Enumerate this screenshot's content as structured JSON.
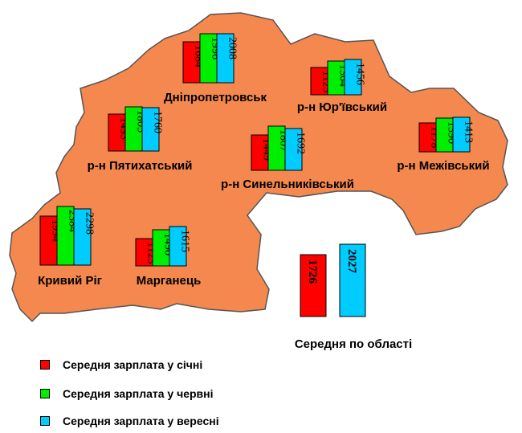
{
  "colors": {
    "region_fill": "#f4884e",
    "outline": "#555555",
    "january": "#ff0000",
    "june": "#00ee00",
    "september": "#00ccff"
  },
  "legend": [
    {
      "label": "Середня зарплата у січні",
      "color": "#ff0000"
    },
    {
      "label": "Середня зарплата у червні",
      "color": "#00ee00"
    },
    {
      "label": "Середня зарплата у вересні",
      "color": "#00ccff"
    }
  ],
  "average": {
    "label": "Середня по області",
    "january": 1726,
    "september": 2027
  },
  "chart_data": {
    "type": "bar",
    "categories": [
      "Дніпропетровськ",
      "р-н Юр'ївський",
      "р-н Пятихатський",
      "р-н Синельниківський",
      "р-н Межівський",
      "Кривий  Ріг",
      "Марганець"
    ],
    "series": [
      {
        "name": "Середня зарплата у січні",
        "values": [
          1684,
          1125,
          1493,
          1449,
          1178,
          1994,
          1123
        ]
      },
      {
        "name": "Середня зарплата у червні",
        "values": [
          1996,
          1364,
          1805,
          1807,
          1390,
          2384,
          1490
        ]
      },
      {
        "name": "Середня зарплата у вересні",
        "values": [
          2008,
          1456,
          1760,
          1692,
          1413,
          2298,
          1615
        ]
      }
    ]
  },
  "districts": [
    {
      "name": "Дніпропетровськ",
      "values": [
        1684,
        1996,
        2008
      ]
    },
    {
      "name": "р-н Юр'ївський",
      "values": [
        1125,
        1364,
        1456
      ]
    },
    {
      "name": "р-н Пятихатський",
      "values": [
        1493,
        1805,
        1760
      ]
    },
    {
      "name": "р-н Синельниківський",
      "values": [
        1449,
        1807,
        1692
      ]
    },
    {
      "name": "р-н Межівський",
      "values": [
        1178,
        1390,
        1413
      ]
    },
    {
      "name": "Кривий  Ріг",
      "values": [
        1994,
        2384,
        2298
      ]
    },
    {
      "name": "Марганець",
      "values": [
        1123,
        1490,
        1615
      ]
    }
  ]
}
